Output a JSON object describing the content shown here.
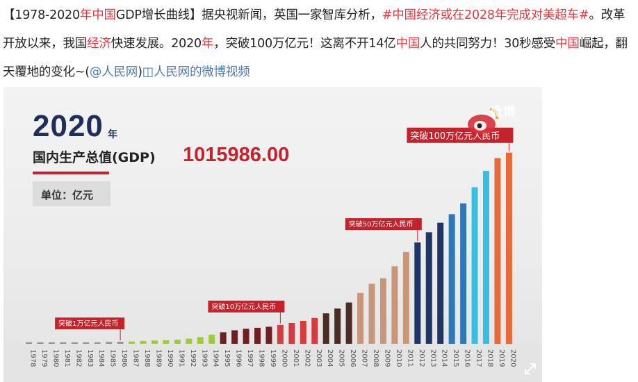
{
  "post": {
    "segments": [
      {
        "t": "【1978-2020",
        "c": ""
      },
      {
        "t": "年中国",
        "c": "hl"
      },
      {
        "t": "GDP增长曲线】据央视新闻，英国一家智库分析，",
        "c": ""
      },
      {
        "t": "#中国经济或在2028年完成对美超车#",
        "c": "tag"
      },
      {
        "t": "。改革开放以来，我国",
        "c": ""
      },
      {
        "t": "经济",
        "c": "hl"
      },
      {
        "t": "快速发展。2020",
        "c": ""
      },
      {
        "t": "年",
        "c": "hl"
      },
      {
        "t": "，突破100万亿元！这离不开14亿",
        "c": ""
      },
      {
        "t": "中国",
        "c": "hl"
      },
      {
        "t": "人的共同努力！30秒感受",
        "c": ""
      },
      {
        "t": "中国",
        "c": "hl"
      },
      {
        "t": "崛起，翻天覆地的变化~(",
        "c": ""
      },
      {
        "t": "@人民网",
        "c": "link"
      },
      {
        "t": ")",
        "c": ""
      },
      {
        "t": "◫人民网的微博视频",
        "c": "link"
      }
    ]
  },
  "chart_header": {
    "year": "2020",
    "year_unit": "年",
    "gdp_label": "国内生产总值(GDP)",
    "gdp_value": "1015986.00",
    "unit_text": "单位：亿元",
    "watermark": "微博"
  },
  "chart_data": {
    "type": "bar",
    "years": [
      "1978",
      "1979",
      "1980",
      "1981",
      "1982",
      "1983",
      "1984",
      "1985",
      "1986",
      "1987",
      "1988",
      "1989",
      "1990",
      "1991",
      "1992",
      "1993",
      "1994",
      "1995",
      "1996",
      "1997",
      "1998",
      "1999",
      "2000",
      "2001",
      "2002",
      "2003",
      "2004",
      "2005",
      "2006",
      "2007",
      "2008",
      "2009",
      "2010",
      "2011",
      "2012",
      "2013",
      "2014",
      "2015",
      "2016",
      "2017",
      "2018",
      "2019",
      "2020"
    ],
    "values": [
      3679,
      4101,
      4588,
      4936,
      5373,
      6021,
      7279,
      9099,
      10376,
      12175,
      15180,
      17180,
      18873,
      22006,
      27195,
      35673,
      48638,
      61340,
      71814,
      79715,
      85196,
      90564,
      100280,
      110863,
      121717,
      137422,
      161840,
      187319,
      219439,
      270092,
      319245,
      348518,
      412119,
      487940,
      538580,
      592963,
      643563,
      688858,
      746395,
      832036,
      919281,
      986515,
      1015986
    ],
    "ylim": [
      0,
      1100000
    ],
    "annotations": [
      {
        "year": "1986",
        "text": "突破1万亿元人民币"
      },
      {
        "year": "2000",
        "text": "突破10万亿元人民币"
      },
      {
        "year": "2012",
        "text": "突破50万亿元人民币"
      },
      {
        "year": "2020",
        "text": "突破100万亿元人民币"
      }
    ],
    "colors": {
      "early": "#8a8f96",
      "green": "#9dcb3a",
      "darkred": "#6e1f22",
      "red": "#d63c3f",
      "brown": "#4a2c22",
      "tan": "#c8977a",
      "navy": "#1e3566",
      "blue": "#2e78b8",
      "cyan": "#36bfe0",
      "orange": "#e8693a",
      "label_bg": "#c5222b"
    }
  }
}
